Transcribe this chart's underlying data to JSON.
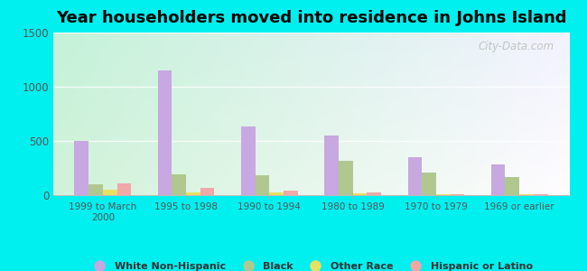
{
  "title": "Year householders moved into residence in Johns Island",
  "categories": [
    "1999 to March\n2000",
    "1995 to 1998",
    "1990 to 1994",
    "1980 to 1989",
    "1970 to 1979",
    "1969 or earlier"
  ],
  "series": {
    "White Non-Hispanic": [
      500,
      1150,
      630,
      550,
      350,
      280
    ],
    "Black": [
      100,
      195,
      185,
      320,
      205,
      165
    ],
    "Other Race": [
      50,
      25,
      25,
      15,
      10,
      10
    ],
    "Hispanic or Latino": [
      105,
      65,
      45,
      25,
      10,
      10
    ]
  },
  "colors": {
    "White Non-Hispanic": "#c8a8e0",
    "Black": "#b0c890",
    "Other Race": "#e8e060",
    "Hispanic or Latino": "#f0a8a8"
  },
  "ylim": [
    0,
    1500
  ],
  "yticks": [
    0,
    500,
    1000,
    1500
  ],
  "fig_bg": "#00f0f0",
  "watermark": "City-Data.com",
  "title_fontsize": 13,
  "title_fontweight": "bold"
}
